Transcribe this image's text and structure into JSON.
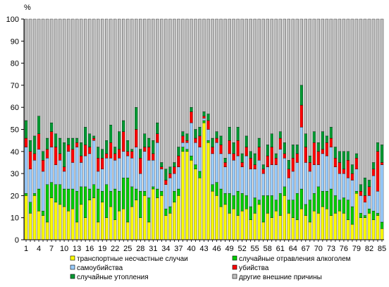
{
  "chart_data": {
    "type": "bar",
    "stacked": true,
    "y_unit_label": "%",
    "ylim": [
      0,
      100
    ],
    "yticks": [
      0,
      10,
      20,
      30,
      40,
      50,
      60,
      70,
      80,
      90,
      100
    ],
    "x": [
      1,
      2,
      3,
      4,
      5,
      6,
      7,
      8,
      9,
      10,
      11,
      12,
      13,
      14,
      15,
      16,
      17,
      18,
      19,
      20,
      21,
      22,
      23,
      24,
      25,
      26,
      27,
      28,
      29,
      30,
      31,
      32,
      33,
      34,
      35,
      36,
      37,
      38,
      39,
      40,
      41,
      42,
      43,
      44,
      45,
      46,
      47,
      48,
      49,
      50,
      51,
      52,
      53,
      54,
      55,
      56,
      57,
      58,
      59,
      60,
      61,
      62,
      63,
      64,
      65,
      66,
      67,
      68,
      69,
      70,
      71,
      72,
      73,
      74,
      75,
      76,
      77,
      78,
      79,
      80,
      81,
      82,
      83,
      84,
      85
    ],
    "xticks": [
      1,
      4,
      7,
      10,
      13,
      16,
      19,
      22,
      25,
      28,
      31,
      34,
      37,
      40,
      43,
      46,
      49,
      52,
      55,
      58,
      61,
      64,
      67,
      70,
      73,
      76,
      79,
      82,
      85
    ],
    "grid": false,
    "legend_position": "bottom",
    "series": [
      {
        "name": "транспортные несчастные случаи",
        "color": "#ffff00",
        "values": [
          20,
          12,
          20,
          13,
          11,
          8,
          19,
          17,
          16,
          15,
          13,
          14,
          8,
          16,
          10,
          18,
          19,
          8,
          17,
          10,
          15,
          9,
          13,
          14,
          8,
          15,
          18,
          10,
          20,
          8,
          23,
          19,
          20,
          11,
          12,
          17,
          20,
          40,
          40,
          36,
          32,
          28,
          53,
          44,
          22,
          20,
          15,
          16,
          12,
          14,
          11,
          13,
          14,
          9,
          12,
          16,
          8,
          12,
          10,
          13,
          11,
          20,
          12,
          10,
          9,
          14,
          11,
          8,
          13,
          12,
          15,
          14,
          11,
          12,
          13,
          12,
          9,
          7,
          21,
          10,
          10,
          12,
          9,
          11,
          5
        ]
      },
      {
        "name": "случайные отравления алкоголем",
        "color": "#00cc00",
        "values": [
          1,
          5,
          1,
          10,
          2,
          17,
          7,
          8,
          9,
          8,
          10,
          9,
          14,
          8,
          14,
          5,
          6,
          15,
          5,
          15,
          7,
          14,
          9,
          14,
          20,
          9,
          5,
          12,
          2,
          11,
          1,
          4,
          2,
          3,
          3,
          5,
          3,
          2,
          1,
          2,
          2,
          3,
          1,
          1,
          3,
          6,
          8,
          5,
          9,
          6,
          11,
          8,
          6,
          6,
          7,
          2,
          12,
          8,
          10,
          5,
          10,
          4,
          6,
          8,
          12,
          9,
          5,
          10,
          8,
          12,
          7,
          8,
          12,
          8,
          5,
          7,
          9,
          8,
          1,
          2,
          1,
          2,
          4,
          1,
          3
        ]
      },
      {
        "name": "самоубийства",
        "color": "#99ccff",
        "values": [
          21,
          15,
          15,
          18,
          18,
          12,
          16,
          9,
          11,
          8,
          17,
          12,
          20,
          11,
          14,
          16,
          20,
          8,
          10,
          12,
          15,
          13,
          15,
          12,
          10,
          13,
          19,
          8,
          18,
          17,
          12,
          21,
          10,
          11,
          13,
          8,
          10,
          2,
          3,
          15,
          10,
          11,
          1,
          5,
          14,
          18,
          16,
          12,
          18,
          16,
          16,
          12,
          18,
          17,
          13,
          18,
          10,
          13,
          14,
          16,
          20,
          13,
          10,
          13,
          14,
          28,
          19,
          13,
          13,
          10,
          17,
          16,
          19,
          13,
          12,
          11,
          10,
          12,
          10,
          8,
          6,
          6,
          16,
          10,
          26
        ]
      },
      {
        "name": "убийства",
        "color": "#ff0000",
        "values": [
          4,
          8,
          3,
          7,
          5,
          4,
          7,
          8,
          3,
          2,
          3,
          6,
          2,
          3,
          5,
          3,
          1,
          6,
          5,
          2,
          7,
          3,
          4,
          9,
          2,
          3,
          8,
          7,
          2,
          6,
          3,
          4,
          1,
          2,
          2,
          3,
          5,
          3,
          1,
          5,
          2,
          5,
          1,
          4,
          3,
          2,
          4,
          2,
          6,
          3,
          7,
          2,
          4,
          5,
          2,
          6,
          2,
          5,
          8,
          3,
          5,
          2,
          4,
          6,
          4,
          10,
          7,
          4,
          10,
          6,
          2,
          6,
          4,
          4,
          5,
          2,
          8,
          3,
          5,
          2,
          3,
          4,
          3,
          18,
          1
        ]
      },
      {
        "name": "случайные утопления",
        "color": "#009933",
        "values": [
          8,
          5,
          8,
          8,
          4,
          5,
          4,
          6,
          7,
          11,
          3,
          5,
          2,
          6,
          8,
          6,
          1,
          5,
          4,
          6,
          8,
          3,
          8,
          5,
          5,
          1,
          10,
          4,
          6,
          4,
          6,
          5,
          2,
          5,
          3,
          2,
          4,
          2,
          3,
          2,
          4,
          4,
          2,
          3,
          4,
          3,
          4,
          2,
          6,
          5,
          6,
          4,
          5,
          3,
          5,
          4,
          2,
          5,
          6,
          2,
          3,
          5,
          4,
          6,
          4,
          9,
          6,
          3,
          5,
          4,
          8,
          3,
          5,
          5,
          5,
          8,
          4,
          4,
          2,
          3,
          8,
          3,
          3,
          4,
          8
        ]
      },
      {
        "name": "другие внешние причины",
        "color": "#c0c0c0",
        "values": [
          46,
          55,
          53,
          44,
          60,
          54,
          47,
          52,
          54,
          56,
          54,
          54,
          54,
          56,
          49,
          52,
          53,
          58,
          59,
          55,
          48,
          58,
          51,
          46,
          55,
          59,
          40,
          59,
          52,
          54,
          55,
          47,
          65,
          68,
          67,
          65,
          58,
          51,
          52,
          40,
          50,
          49,
          42,
          43,
          54,
          51,
          53,
          63,
          49,
          56,
          49,
          61,
          53,
          60,
          61,
          54,
          66,
          57,
          52,
          61,
          51,
          56,
          64,
          57,
          57,
          30,
          52,
          62,
          51,
          56,
          51,
          53,
          49,
          58,
          60,
          60,
          60,
          66,
          61,
          75,
          72,
          73,
          65,
          56,
          57
        ]
      }
    ]
  }
}
